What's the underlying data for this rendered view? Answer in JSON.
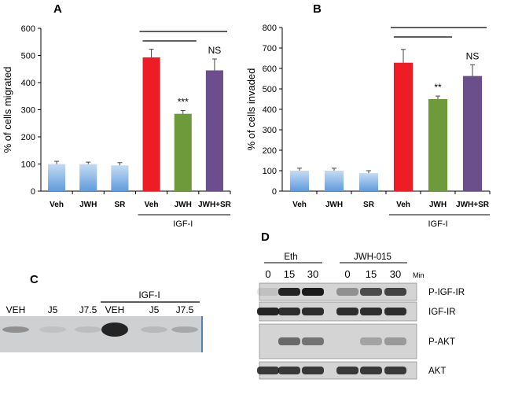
{
  "figure": {
    "panel_labels": {
      "a": "A",
      "b": "B",
      "c": "C",
      "d": "D"
    }
  },
  "chart_data": [
    {
      "type": "bar",
      "panel": "A",
      "categories": [
        "Veh",
        "JWH",
        "SR",
        "Veh",
        "JWH",
        "JWH+SR"
      ],
      "values": [
        100,
        100,
        95,
        493,
        285,
        445
      ],
      "errors": [
        10,
        7,
        10,
        30,
        12,
        42
      ],
      "significance": [
        "",
        "",
        "",
        "",
        "***",
        "NS"
      ],
      "bar_colors": [
        "#9fc3ea",
        "#9fc3ea",
        "#9fc3ea",
        "#ee1c25",
        "#6e9a3b",
        "#6a4f8c"
      ],
      "ylabel": "% of cells migrated",
      "ylim": [
        0,
        600
      ],
      "yticks": [
        0,
        100,
        200,
        300,
        400,
        500,
        600
      ],
      "group_label": "IGF-I",
      "xlabel": ""
    },
    {
      "type": "bar",
      "panel": "B",
      "categories": [
        "Veh",
        "JWH",
        "SR",
        "Veh",
        "JWH",
        "JWH+SR"
      ],
      "values": [
        100,
        100,
        88,
        628,
        450,
        563
      ],
      "errors": [
        12,
        12,
        12,
        65,
        15,
        55
      ],
      "significance": [
        "",
        "",
        "",
        "",
        "**",
        "NS"
      ],
      "bar_colors": [
        "#9fc3ea",
        "#9fc3ea",
        "#9fc3ea",
        "#ee1c25",
        "#6e9a3b",
        "#6a4f8c"
      ],
      "ylabel": "% of cells invaded",
      "ylim": [
        0,
        800
      ],
      "yticks": [
        0,
        100,
        200,
        300,
        400,
        500,
        600,
        700,
        800
      ],
      "group_label": "IGF-I",
      "xlabel": ""
    }
  ],
  "gel_c": {
    "lanes": [
      "VEH",
      "J5",
      "J7.5",
      "VEH",
      "J5",
      "J7.5"
    ],
    "treatment_label": "IGF-I",
    "band_intensity": [
      0.35,
      0.08,
      0.1,
      0.95,
      0.12,
      0.22
    ]
  },
  "blot_d": {
    "group_labels": [
      "Eth",
      "JWH-015"
    ],
    "time_points": [
      "0",
      "15",
      "30",
      "0",
      "15",
      "30"
    ],
    "time_unit": "Min",
    "rows": [
      {
        "label": "P-IGF-IR",
        "intensity": [
          0.1,
          0.9,
          0.95,
          0.35,
          0.7,
          0.75
        ]
      },
      {
        "label": "IGF-IR",
        "intensity": [
          0.9,
          0.85,
          0.85,
          0.85,
          0.85,
          0.85
        ]
      },
      {
        "label": "P-AKT",
        "intensity": [
          0.0,
          0.55,
          0.5,
          0.0,
          0.25,
          0.3
        ]
      },
      {
        "label": "AKT",
        "intensity": [
          0.8,
          0.8,
          0.8,
          0.8,
          0.8,
          0.8
        ]
      }
    ]
  }
}
